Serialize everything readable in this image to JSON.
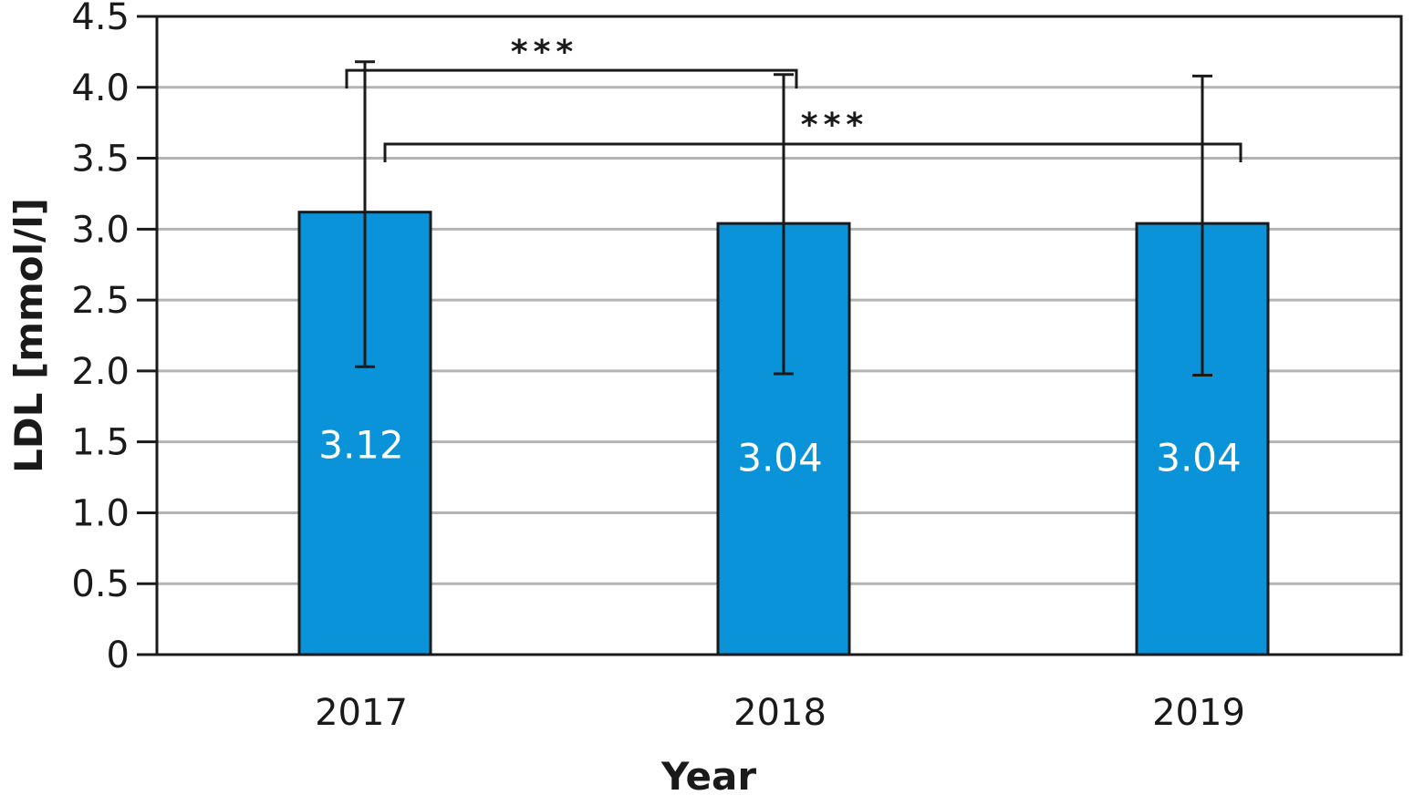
{
  "chart_data": {
    "type": "bar",
    "categories": [
      "2017",
      "2018",
      "2019"
    ],
    "values": [
      3.12,
      3.04,
      3.04
    ],
    "value_labels": [
      "3.12",
      "3.04",
      "3.04"
    ],
    "error_bars": [
      {
        "low": 2.03,
        "high": 4.18
      },
      {
        "low": 1.98,
        "high": 4.09
      },
      {
        "low": 1.97,
        "high": 4.08
      }
    ],
    "xlabel": "Year",
    "ylabel": "LDL [mmol/l]",
    "ylim": [
      0,
      4.5
    ],
    "yticks": [
      0,
      0.5,
      1.0,
      1.5,
      2.0,
      2.5,
      3.0,
      3.5,
      4.0,
      4.5
    ],
    "ytick_labels": [
      "0",
      "0.5",
      "1.0",
      "1.5",
      "2.0",
      "2.5",
      "3.0",
      "3.5",
      "4.0",
      "4.5"
    ],
    "grid": "horizontal",
    "significance": [
      {
        "from": "2017",
        "to": "2018",
        "label": "***"
      },
      {
        "from": "2017",
        "to": "2019",
        "label": "***"
      }
    ],
    "colors": {
      "bar": "#0a93d8",
      "grid": "#b3b3b3",
      "axis": "#1a1a1a"
    }
  }
}
